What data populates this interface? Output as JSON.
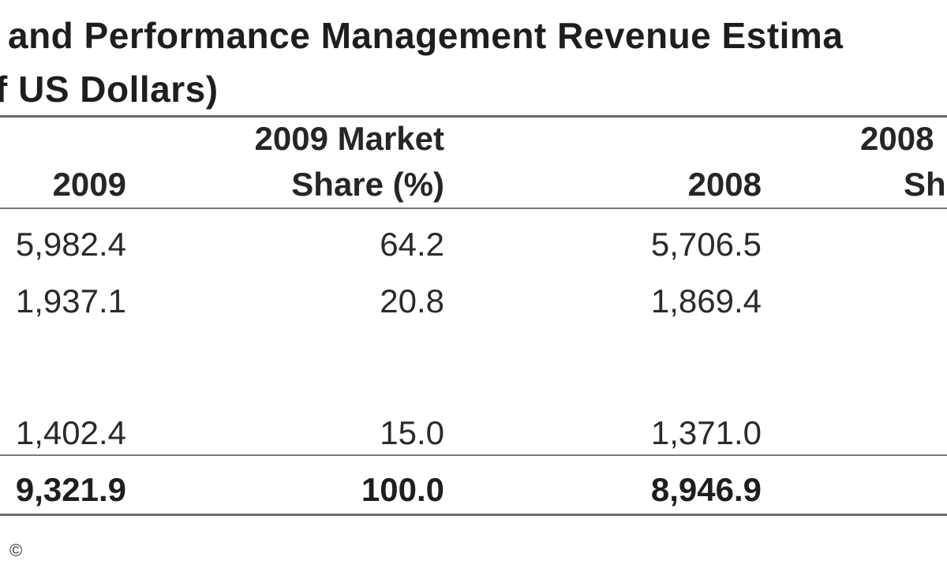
{
  "title": {
    "line1": "and Performance Management Revenue Estima",
    "line2": "f US Dollars)"
  },
  "columns": [
    {
      "line1": "",
      "line2": "2009"
    },
    {
      "line1": "2009 Market",
      "line2": "Share (%)"
    },
    {
      "line1": "",
      "line2": "2008"
    },
    {
      "line1": "2008",
      "line2": "Sh"
    }
  ],
  "rows": [
    {
      "v2009": "5,982.4",
      "share2009": "64.2",
      "v2008": "5,706.5"
    },
    {
      "v2009": "1,937.1",
      "share2009": "20.8",
      "v2008": "1,869.4"
    },
    {
      "v2009": "1,402.4",
      "share2009": "15.0",
      "v2008": "1,371.0"
    }
  ],
  "total": {
    "v2009": "9,321.9",
    "share2009": "100.0",
    "v2008": "8,946.9"
  },
  "footer": {
    "copyright": "©"
  }
}
